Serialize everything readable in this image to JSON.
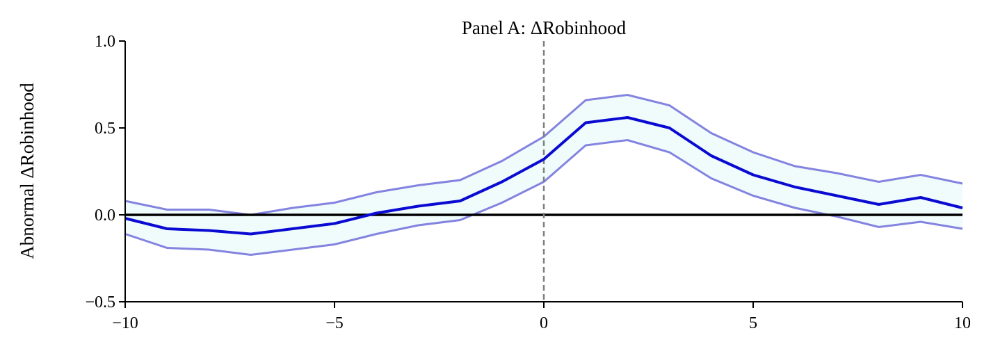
{
  "chart_data": {
    "type": "line",
    "title": "Panel A: ΔRobinhood",
    "xlabel": "",
    "ylabel": "Abnormal ΔRobinhood",
    "xlim": [
      -10,
      10
    ],
    "ylim": [
      -0.5,
      1.0
    ],
    "xticks": [
      -10,
      -5,
      0,
      5,
      10
    ],
    "xtick_labels": [
      "−10",
      "−5",
      "0",
      "5",
      "10"
    ],
    "yticks": [
      -0.5,
      0.0,
      0.5,
      1.0
    ],
    "ytick_labels": [
      "−0.5",
      "0.0",
      "0.5",
      "1.0"
    ],
    "grid": false,
    "vertical_line_x": 0,
    "horizontal_line_y": 0,
    "x": [
      -10,
      -9,
      -8,
      -7,
      -6,
      -5,
      -4,
      -3,
      -2,
      -1,
      0,
      1,
      2,
      3,
      4,
      5,
      6,
      7,
      8,
      9,
      10
    ],
    "series": [
      {
        "role": "estimate",
        "values": [
          -0.02,
          -0.08,
          -0.09,
          -0.11,
          -0.08,
          -0.05,
          0.01,
          0.05,
          0.08,
          0.19,
          0.32,
          0.53,
          0.56,
          0.5,
          0.34,
          0.23,
          0.16,
          0.11,
          0.06,
          0.1,
          0.04
        ]
      },
      {
        "role": "upper-bound",
        "values": [
          0.08,
          0.03,
          0.03,
          0.0,
          0.04,
          0.07,
          0.13,
          0.17,
          0.2,
          0.31,
          0.45,
          0.66,
          0.69,
          0.63,
          0.47,
          0.36,
          0.28,
          0.24,
          0.19,
          0.23,
          0.18
        ]
      },
      {
        "role": "lower-bound",
        "values": [
          -0.11,
          -0.19,
          -0.2,
          -0.23,
          -0.2,
          -0.17,
          -0.11,
          -0.06,
          -0.03,
          0.07,
          0.19,
          0.4,
          0.43,
          0.36,
          0.21,
          0.11,
          0.04,
          -0.01,
          -0.07,
          -0.04,
          -0.08
        ]
      }
    ],
    "colors": {
      "estimate": "#0a0ad2",
      "band_edge": "#8383e0",
      "band_fill": "#f0fcfc",
      "zero_line": "#000000",
      "event_line": "#808080",
      "axis": "#000000"
    }
  }
}
